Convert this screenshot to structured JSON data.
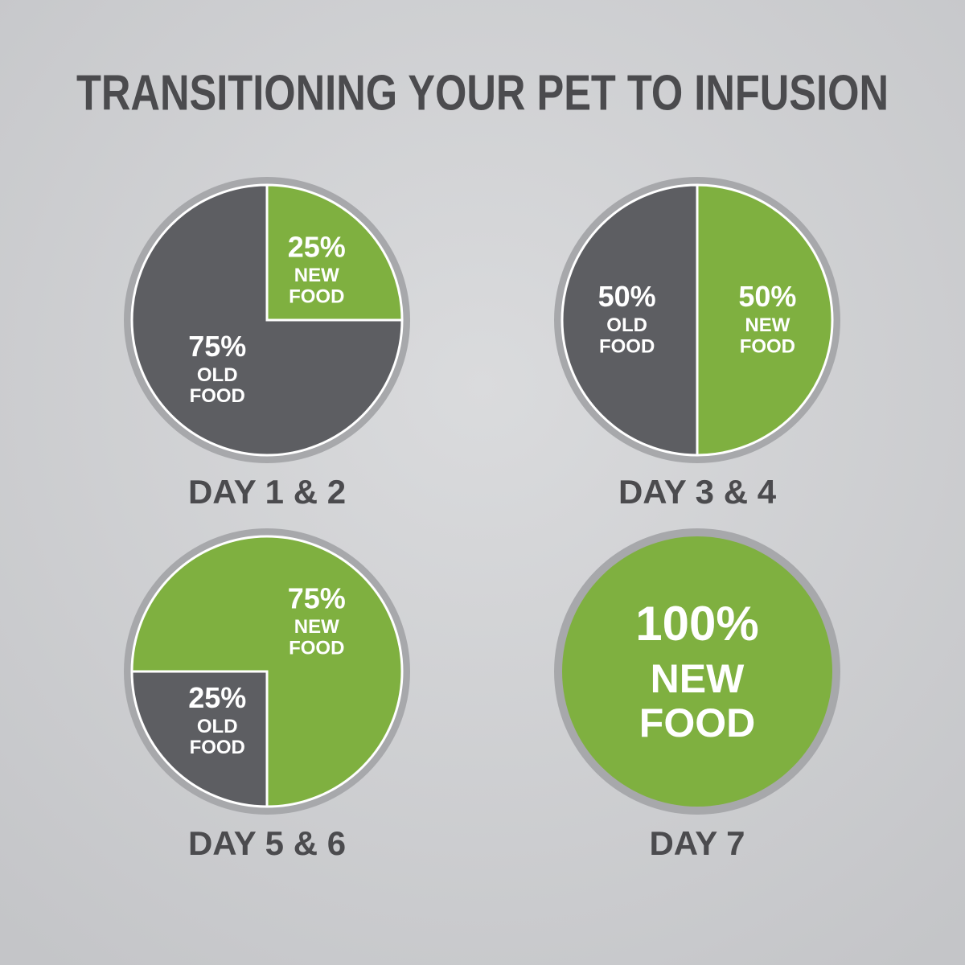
{
  "title": "TRANSITIONING YOUR PET TO INFUSION",
  "chart_data": [
    {
      "type": "pie",
      "title": "DAY 1 & 2",
      "categories": [
        "NEW FOOD",
        "OLD FOOD"
      ],
      "values": [
        25,
        75
      ],
      "value_labels": [
        "25%",
        "75%"
      ],
      "colors": [
        "#7fb040",
        "#5d5e62"
      ],
      "startangle": 0
    },
    {
      "type": "pie",
      "title": "DAY 3 & 4",
      "categories": [
        "NEW FOOD",
        "OLD FOOD"
      ],
      "values": [
        50,
        50
      ],
      "value_labels": [
        "50%",
        "50%"
      ],
      "colors": [
        "#7fb040",
        "#5d5e62"
      ],
      "startangle": 0
    },
    {
      "type": "pie",
      "title": "DAY 5 & 6",
      "categories": [
        "NEW FOOD",
        "OLD FOOD"
      ],
      "values": [
        75,
        25
      ],
      "value_labels": [
        "75%",
        "25%"
      ],
      "colors": [
        "#7fb040",
        "#5d5e62"
      ],
      "startangle": 270
    },
    {
      "type": "pie",
      "title": "DAY 7",
      "categories": [
        "NEW FOOD"
      ],
      "values": [
        100
      ],
      "value_labels": [
        "100%"
      ],
      "colors": [
        "#7fb040"
      ],
      "startangle": 0
    }
  ]
}
